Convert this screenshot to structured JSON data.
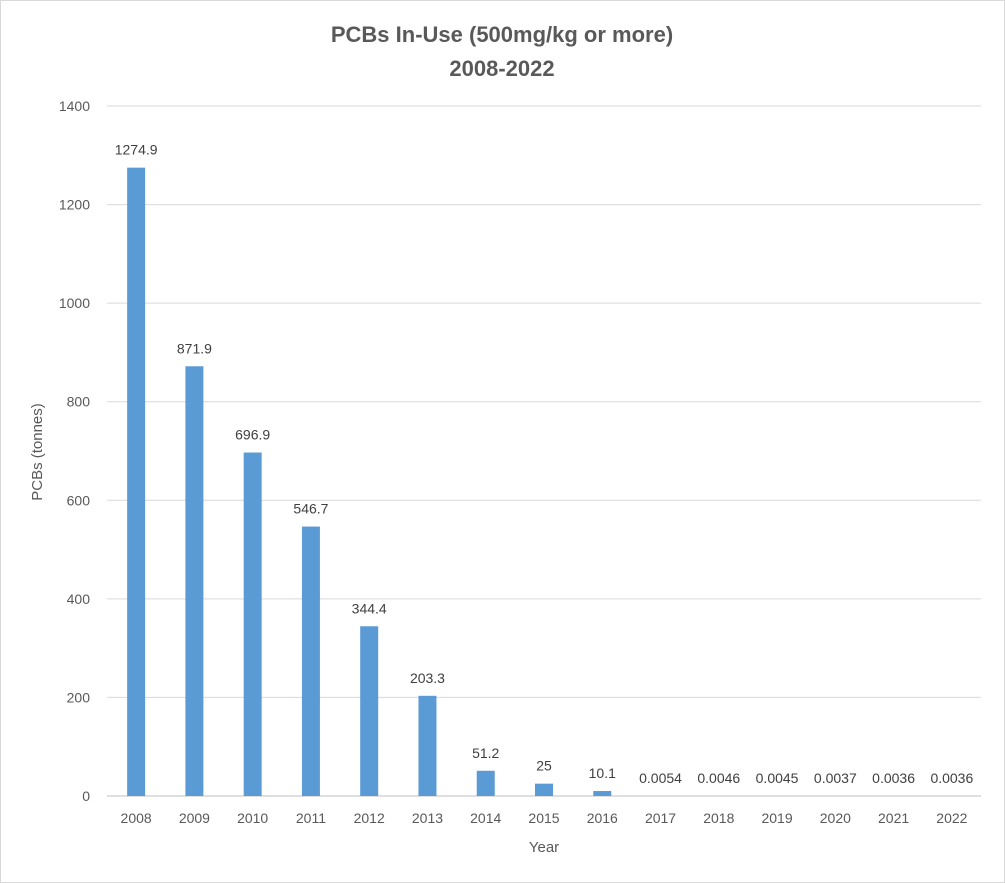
{
  "chart_data": {
    "type": "bar",
    "title": "PCBs In-Use (500mg/kg or more)",
    "subtitle": "2008-2022",
    "xlabel": "Year",
    "ylabel": "PCBs (tonnes)",
    "ylim": [
      0,
      1400
    ],
    "yticks": [
      0,
      200,
      400,
      600,
      800,
      1000,
      1200,
      1400
    ],
    "grid": true,
    "legend": "none",
    "bar_color": "#5b9bd5",
    "categories": [
      "2008",
      "2009",
      "2010",
      "2011",
      "2012",
      "2013",
      "2014",
      "2015",
      "2016",
      "2017",
      "2018",
      "2019",
      "2020",
      "2021",
      "2022"
    ],
    "values": [
      1274.9,
      871.9,
      696.9,
      546.7,
      344.4,
      203.3,
      51.2,
      25,
      10.1,
      0.0054,
      0.0046,
      0.0045,
      0.0037,
      0.0036,
      0.0036
    ],
    "data_labels": [
      "1274.9",
      "871.9",
      "696.9",
      "546.7",
      "344.4",
      "203.3",
      "51.2",
      "25",
      "10.1",
      "0.0054",
      "0.0046",
      "0.0045",
      "0.0037",
      "0.0036",
      "0.0036"
    ]
  }
}
